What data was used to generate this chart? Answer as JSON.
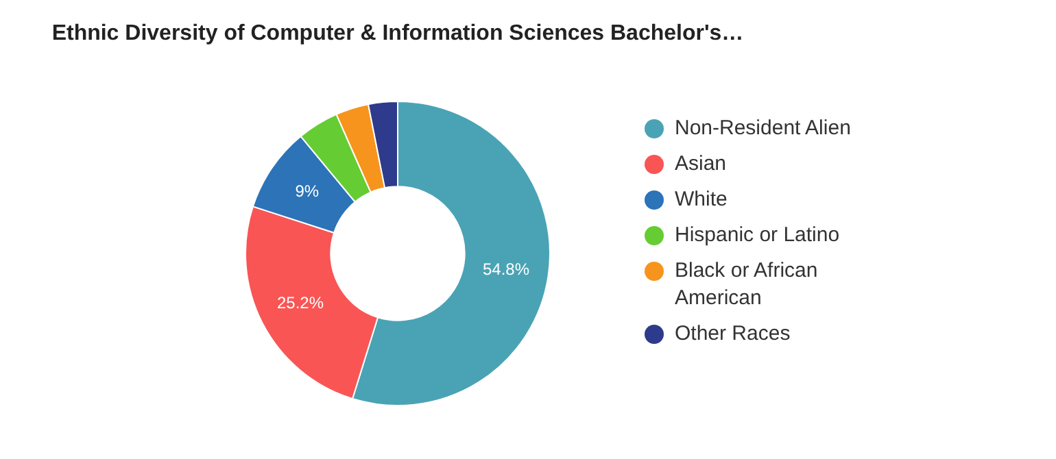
{
  "chart_data": {
    "type": "donut",
    "title": "Ethnic Diversity of Computer & Information Sciences Bachelor's…",
    "categories": [
      "Non-Resident Alien",
      "Asian",
      "White",
      "Hispanic or Latino",
      "Black or African American",
      "Other Races"
    ],
    "values": [
      54.8,
      25.2,
      9,
      4.4,
      3.5,
      3.1
    ],
    "colors": [
      "#4aa3b5",
      "#f95555",
      "#2c73b8",
      "#66cc33",
      "#f7941d",
      "#2e3a8c"
    ],
    "value_labels": [
      "54.8%",
      "25.2%",
      "9%",
      null,
      null,
      null
    ],
    "legend": "right"
  }
}
